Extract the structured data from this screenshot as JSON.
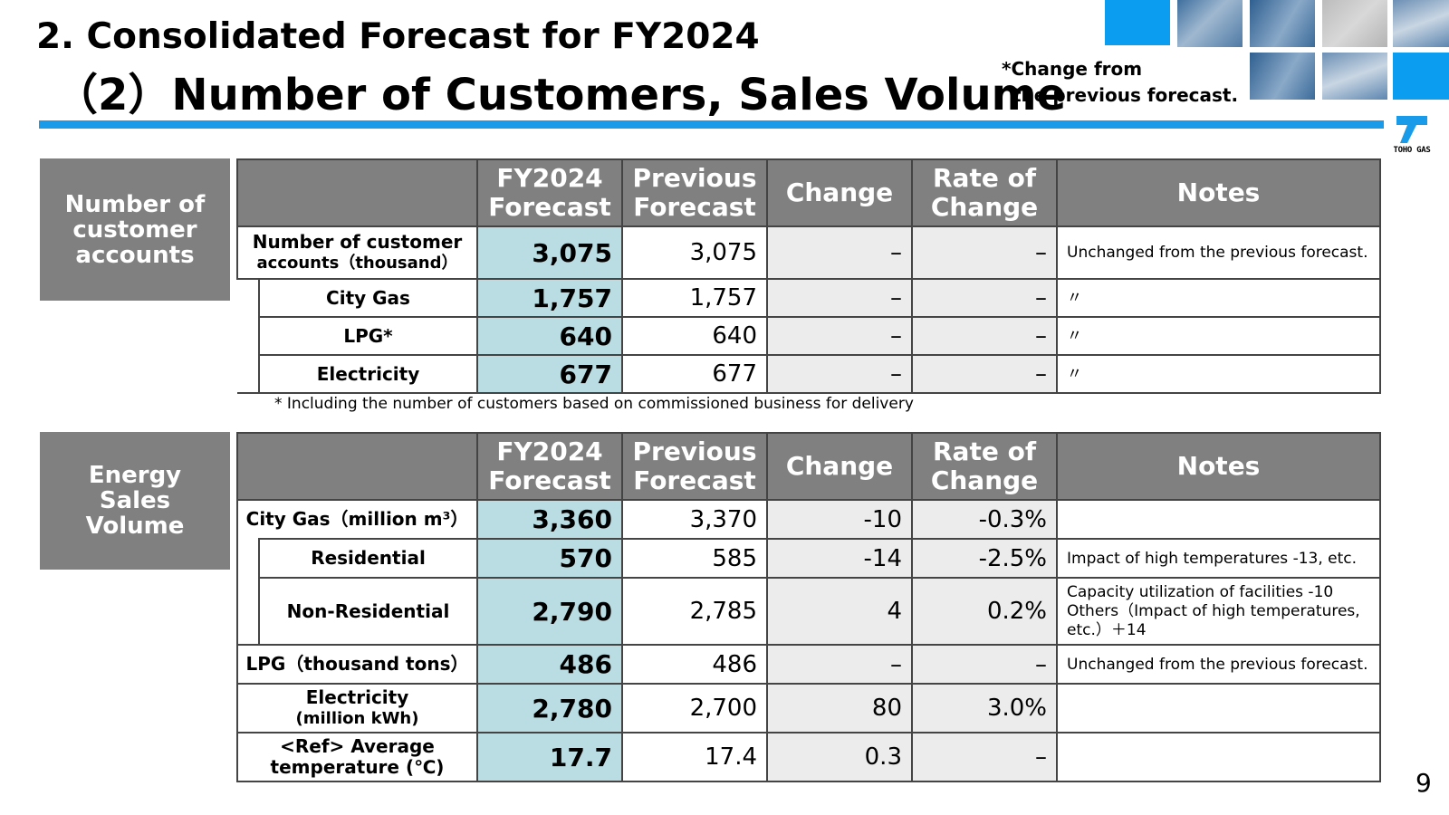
{
  "header": {
    "title_line1": "2.  Consolidated Forecast for FY2024",
    "title_line2": "（2）Number of Customers, Sales Volume",
    "note_line1": "*Change from",
    "note_line2": "the previous forecast."
  },
  "logo": {
    "text": "TOHO GAS",
    "color": "#1a9bea"
  },
  "colors": {
    "accent": "#1a9bea",
    "forecast_col": "#b9dde2",
    "header_bg": "#808080",
    "change_bg": "#ececec"
  },
  "columns": {
    "fy_l1": "FY2024",
    "fy_l2": "Forecast",
    "prev_l1": "Previous",
    "prev_l2": "Forecast",
    "change": "Change",
    "rate_l1": "Rate of",
    "rate_l2": "Change",
    "notes": "Notes"
  },
  "customers": {
    "section_l1": "Number of",
    "section_l2": "customer",
    "section_l3": "accounts",
    "rows": [
      {
        "label_l1": "Number of customer",
        "label_l2": "accounts（thousand）",
        "fy": "3,075",
        "prev": "3,075",
        "change": "–",
        "rate": "–",
        "notes": "Unchanged from the previous forecast."
      },
      {
        "label": "City Gas",
        "fy": "1,757",
        "prev": "1,757",
        "change": "–",
        "rate": "–",
        "notes": "〃"
      },
      {
        "label": "LPG*",
        "fy": "640",
        "prev": "640",
        "change": "–",
        "rate": "–",
        "notes": "〃"
      },
      {
        "label": "Electricity",
        "fy": "677",
        "prev": "677",
        "change": "–",
        "rate": "–",
        "notes": "〃"
      }
    ],
    "footnote": "* Including the number of customers based on commissioned business for delivery"
  },
  "energy": {
    "section_l1": "Energy",
    "section_l2": "Sales",
    "section_l3": "Volume",
    "rows": [
      {
        "label": "City Gas（million m³）",
        "fy": "3,360",
        "prev": "3,370",
        "change": "-10",
        "rate": "-0.3%",
        "notes": ""
      },
      {
        "label": "Residential",
        "fy": "570",
        "prev": "585",
        "change": "-14",
        "rate": "-2.5%",
        "notes": "Impact of high temperatures -13, etc."
      },
      {
        "label": "Non-Residential",
        "fy": "2,790",
        "prev": "2,785",
        "change": "4",
        "rate": "0.2%",
        "notes_l1": "Capacity utilization of facilities -10",
        "notes_l2": "Others（Impact of high temperatures, etc.）＋14"
      },
      {
        "label": "LPG（thousand tons）",
        "fy": "486",
        "prev": "486",
        "change": "–",
        "rate": "–",
        "notes": "Unchanged from the previous forecast."
      },
      {
        "label_l1": "Electricity",
        "label_l2": "(million kWh)",
        "fy": "2,780",
        "prev": "2,700",
        "change": "80",
        "rate": "3.0%",
        "notes": ""
      },
      {
        "label_l1": "<Ref> Average",
        "label_l2": "temperature (℃)",
        "fy": "17.7",
        "prev": "17.4",
        "change": "0.3",
        "rate": "–",
        "notes": ""
      }
    ]
  },
  "page_number": "9"
}
